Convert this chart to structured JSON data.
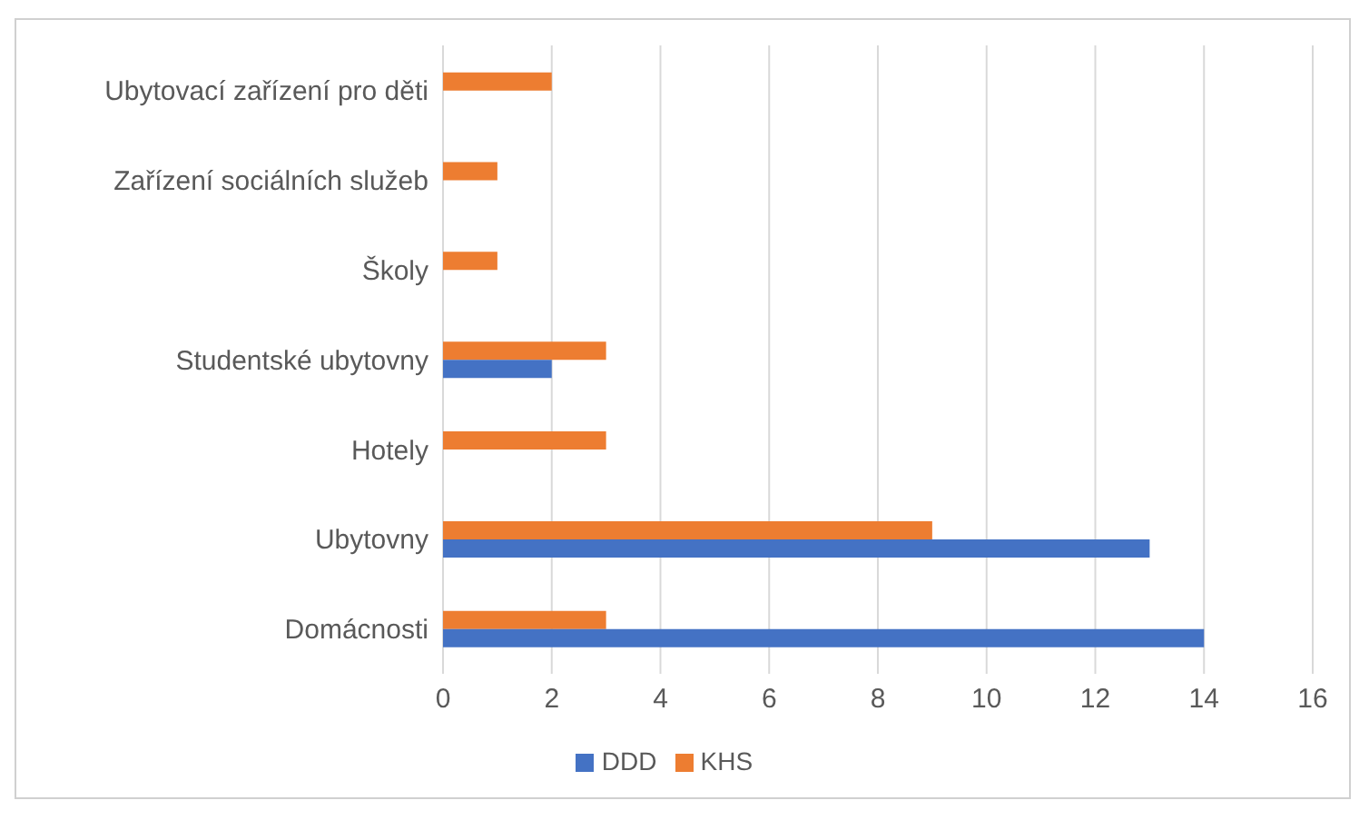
{
  "chart_data": {
    "type": "bar",
    "orientation": "horizontal",
    "categories": [
      "Ubytovací zařízení pro děti",
      "Zařízení sociálních služeb",
      "Školy",
      "Studentské ubytovny",
      "Hotely",
      "Ubytovny",
      "Domácnosti"
    ],
    "series": [
      {
        "name": "KHS",
        "color": "#ed7d31",
        "values": [
          2,
          1,
          1,
          3,
          3,
          9,
          3
        ]
      },
      {
        "name": "DDD",
        "color": "#4472c4",
        "values": [
          null,
          null,
          null,
          2,
          null,
          13,
          14
        ]
      }
    ],
    "xlim": [
      0,
      16
    ],
    "xticks": [
      0,
      2,
      4,
      6,
      8,
      10,
      12,
      14,
      16
    ],
    "grid": "x",
    "legend": "bottom"
  }
}
